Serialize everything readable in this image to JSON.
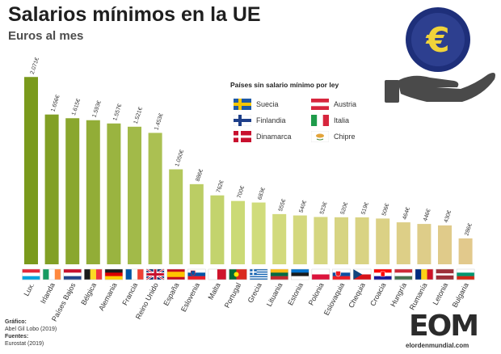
{
  "header": {
    "title": "Salarios mínimos en la UE",
    "subtitle": "Euros al mes"
  },
  "legend": {
    "title": "Países sin salario mínimo por ley",
    "items": [
      {
        "label": "Suecia",
        "flag": "sweden"
      },
      {
        "label": "Austria",
        "flag": "austria"
      },
      {
        "label": "Finlandia",
        "flag": "finland"
      },
      {
        "label": "Italia",
        "flag": "italy"
      },
      {
        "label": "Dinamarca",
        "flag": "denmark"
      },
      {
        "label": "Chipre",
        "flag": "cyprus"
      }
    ]
  },
  "source": {
    "grafico_label": "Gráfico:",
    "grafico_value": "Abel Gil Lobo (2019)",
    "fuentes_label": "Fuentes:",
    "fuentes_value": "Eurostat (2019)"
  },
  "logo": {
    "word": "EOM",
    "url": "elordenmundial.com"
  },
  "colors": {
    "bar_start": "#7a9a1c",
    "bar_mid": "#cfdd7a",
    "bar_end": "#e2c98c"
  },
  "chart_data": {
    "type": "bar",
    "title": "Salarios mínimos en la UE",
    "ylabel": "Euros al mes",
    "xlabel": "",
    "ylim": [
      0,
      2100
    ],
    "grid": false,
    "categories": [
      "Lux.",
      "Irlanda",
      "Países Bajos",
      "Bélgica",
      "Alemania",
      "Francia",
      "Reino Unido",
      "España",
      "Eslovenia",
      "Malta",
      "Portugal",
      "Grecia",
      "Lituania",
      "Estonia",
      "Polonia",
      "Eslovaquia",
      "Chequia",
      "Croacia",
      "Hungría",
      "Rumanía",
      "Letonia",
      "Bulgaria"
    ],
    "values": [
      2071,
      1656,
      1615,
      1593,
      1557,
      1521,
      1453,
      1050,
      886,
      762,
      700,
      683,
      555,
      540,
      523,
      520,
      519,
      506,
      464,
      446,
      430,
      286
    ],
    "data_labels": [
      "2.071€",
      "1.656€",
      "1.615€",
      "1.593€",
      "1.557€",
      "1.521€",
      "1.453€",
      "1.050€",
      "886€",
      "762€",
      "700€",
      "683€",
      "555€",
      "540€",
      "523€",
      "520€",
      "519€",
      "506€",
      "464€",
      "446€",
      "430€",
      "286€"
    ],
    "flags": [
      "luxembourg",
      "ireland",
      "netherlands",
      "belgium",
      "germany",
      "france",
      "uk",
      "spain",
      "slovenia",
      "malta",
      "portugal",
      "greece",
      "lithuania",
      "estonia",
      "poland",
      "slovakia",
      "czechia",
      "croatia",
      "hungary",
      "romania",
      "latvia",
      "bulgaria"
    ]
  }
}
